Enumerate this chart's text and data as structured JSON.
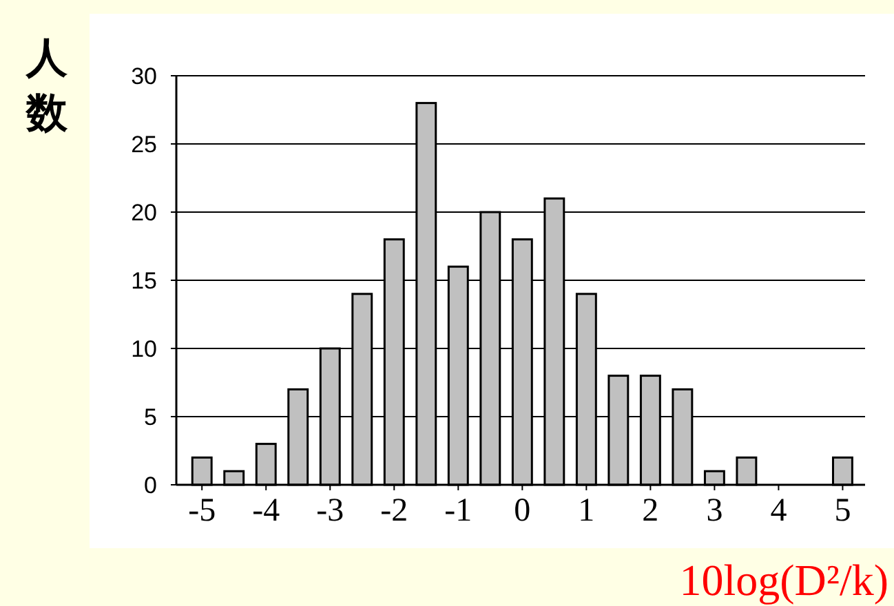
{
  "chart_data": {
    "type": "bar",
    "ylabel": "人数",
    "xlabel": "10log(D²/k)",
    "color": "#c0c0c0",
    "x": [
      -5,
      -4.5,
      -4,
      -3.5,
      -3,
      -2.5,
      -2,
      -1.5,
      -1,
      -0.5,
      0,
      0.5,
      1,
      1.5,
      2,
      2.5,
      3,
      3.5,
      4,
      4.5,
      5
    ],
    "values": [
      2,
      1,
      3,
      7,
      10,
      14,
      18,
      28,
      16,
      20,
      18,
      21,
      14,
      8,
      8,
      7,
      1,
      2,
      0,
      0,
      2
    ],
    "xlim": [
      -5.4,
      5.35
    ],
    "ylim": [
      0,
      30
    ],
    "xticks": [
      {
        "value": -5,
        "label": "-5"
      },
      {
        "value": -4,
        "label": "-4"
      },
      {
        "value": -3,
        "label": "-3"
      },
      {
        "value": -2,
        "label": "-2"
      },
      {
        "value": -1,
        "label": "-1"
      },
      0,
      1,
      2,
      3,
      4,
      5
    ],
    "yticks": [
      0,
      5,
      10,
      15,
      20,
      25,
      30
    ],
    "grid": "y"
  }
}
